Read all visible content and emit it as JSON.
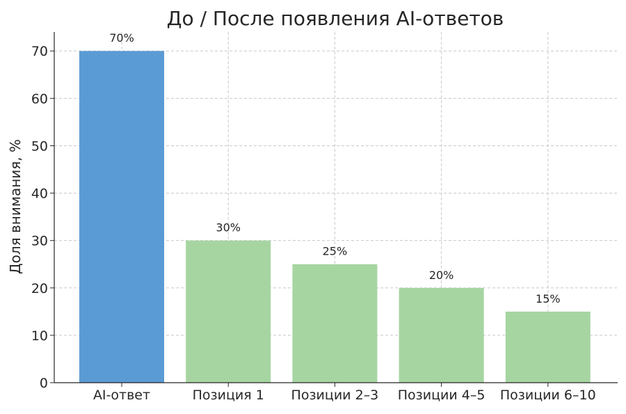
{
  "chart_data": {
    "type": "bar",
    "title": "До / После появления AI-ответов",
    "xlabel": "",
    "ylabel": "Доля внимания, %",
    "categories": [
      "AI-ответ",
      "Позиция 1",
      "Позиции 2–3",
      "Позиции 4–5",
      "Позиции 6–10"
    ],
    "values": [
      70,
      30,
      25,
      20,
      15
    ],
    "data_labels": [
      "70%",
      "30%",
      "25%",
      "20%",
      "15%"
    ],
    "bar_colors": [
      "#5b9bd5",
      "#a6d5a2",
      "#a6d5a2",
      "#a6d5a2",
      "#a6d5a2"
    ],
    "ylim": [
      0,
      74
    ],
    "yticks": [
      0,
      10,
      20,
      30,
      40,
      50,
      60,
      70
    ],
    "grid": true,
    "grid_style": "dashed"
  }
}
